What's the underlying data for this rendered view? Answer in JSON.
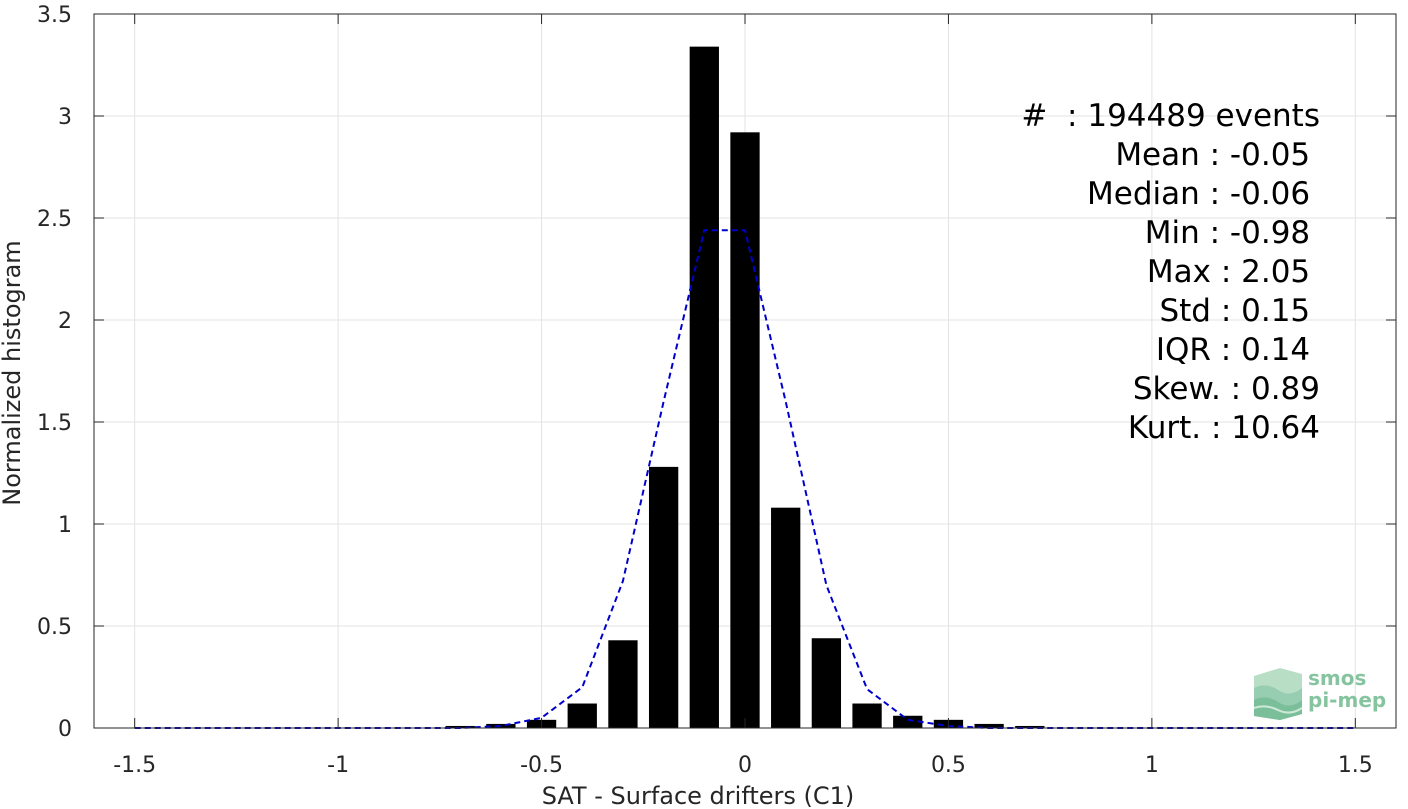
{
  "chart_data": {
    "type": "bar",
    "xlabel": "SAT - Surface drifters (C1)",
    "ylabel": "Normalized histogram",
    "xlim": [
      -1.6,
      1.6
    ],
    "ylim": [
      0,
      3.5
    ],
    "xticks": [
      -1.5,
      -1,
      -0.5,
      0,
      0.5,
      1,
      1.5
    ],
    "xtick_labels": [
      "-1.5",
      "-1",
      "-0.5",
      "0",
      "0.5",
      "1",
      "1.5"
    ],
    "yticks": [
      0,
      0.5,
      1,
      1.5,
      2,
      2.5,
      3,
      3.5
    ],
    "ytick_labels": [
      "0",
      "0.5",
      "1",
      "1.5",
      "2",
      "2.5",
      "3",
      "3.5"
    ],
    "grid": true,
    "bars": {
      "color": "#000000",
      "x": [
        -0.7,
        -0.6,
        -0.5,
        -0.4,
        -0.3,
        -0.2,
        -0.1,
        0.0,
        0.1,
        0.2,
        0.3,
        0.4,
        0.5,
        0.6,
        0.7
      ],
      "values": [
        0.01,
        0.02,
        0.04,
        0.12,
        0.43,
        1.28,
        3.34,
        2.92,
        1.08,
        0.44,
        0.12,
        0.06,
        0.04,
        0.02,
        0.01
      ]
    },
    "fit_curve": {
      "style": "dashed",
      "color": "#0000cc",
      "x": [
        -1.5,
        -0.7,
        -0.6,
        -0.5,
        -0.4,
        -0.3,
        -0.2,
        -0.1,
        -0.05,
        0.0,
        0.1,
        0.2,
        0.3,
        0.4,
        0.5,
        0.6,
        1.5
      ],
      "y": [
        0,
        0,
        0.01,
        0.05,
        0.2,
        0.72,
        1.6,
        2.44,
        2.44,
        2.44,
        1.6,
        0.7,
        0.19,
        0.04,
        0.01,
        0,
        0
      ]
    }
  },
  "stats": [
    "#  : 194489 events",
    "Mean : -0.05 ",
    "Median : -0.06 ",
    "Min : -0.98 ",
    "Max : 2.05 ",
    "Std : 0.15 ",
    "IQR : 0.14 ",
    "Skew. : 0.89",
    "Kurt. : 10.64"
  ],
  "logo": {
    "line1": "smos",
    "line2": "pi-mep",
    "color": "#86c4a0"
  }
}
